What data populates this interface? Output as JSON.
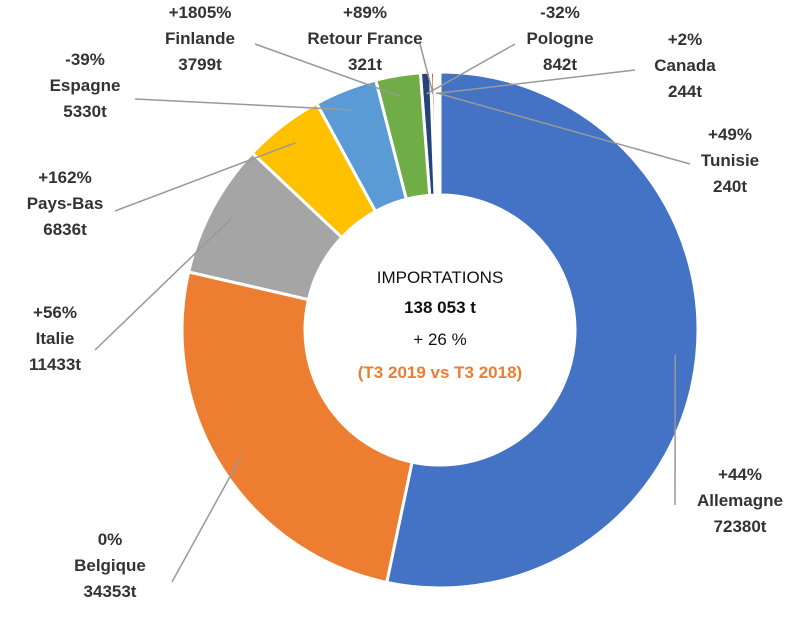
{
  "chart_data": {
    "type": "donut",
    "categories": [
      "Allemagne",
      "Belgique",
      "Italie",
      "Pays-Bas",
      "Espagne",
      "Finlande",
      "Pologne",
      "Retour France",
      "Canada",
      "Tunisie"
    ],
    "values": [
      72380,
      34353,
      11433,
      6836,
      5330,
      3799,
      842,
      321,
      244,
      240
    ],
    "value_labels": [
      "72380t",
      "34353t",
      "11433t",
      "6836t",
      "5330t",
      "3799t",
      "842t",
      "321t",
      "244t",
      "240t"
    ],
    "changes": [
      "+44%",
      "0%",
      "+56%",
      "+162%",
      "-39%",
      "+1805%",
      "-32%",
      "+89%",
      "+2%",
      "+49%"
    ],
    "colors": [
      "#4472c4",
      "#ed7d31",
      "#a5a5a5",
      "#ffc000",
      "#5b9bd5",
      "#70ad47",
      "#264478",
      "#9e480e",
      "#636363",
      "#997300"
    ],
    "center_text": [
      "IMPORTATIONS",
      "138 053 t",
      "+ 26 %",
      "(T3 2019 vs T3 2018)"
    ]
  }
}
